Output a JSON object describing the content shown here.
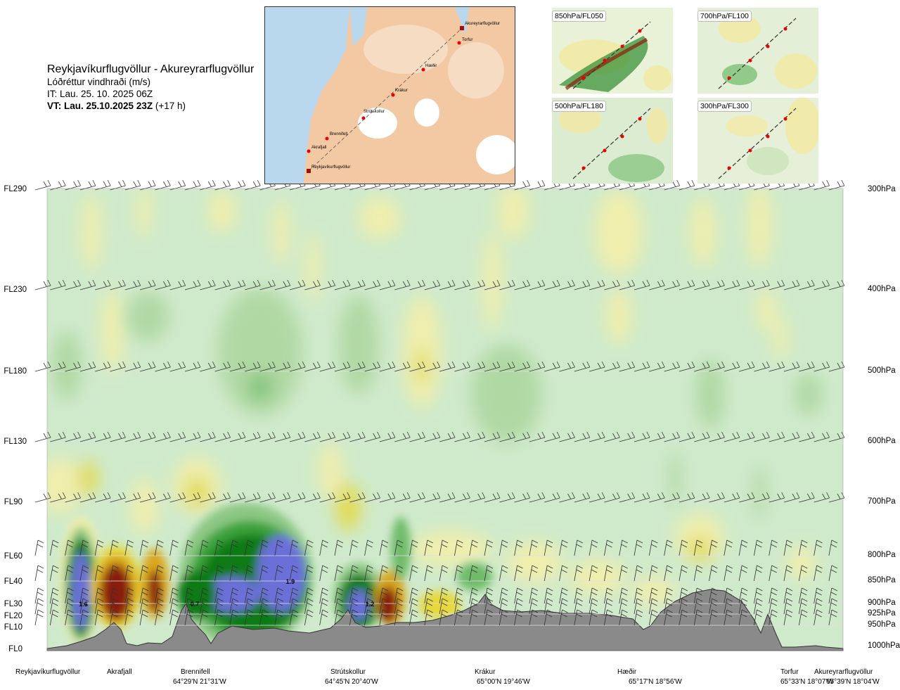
{
  "header": {
    "title": "Reykjavíkurflugvöllur - Akureyrarflugvöllur",
    "variable": "Lóðréttur vindhraði (m/s)",
    "issue_time": "IT: Lau. 25. 10. 2025 06Z",
    "valid_bold": "VT: Lau. 25.10.2025 23Z",
    "valid_lead": " (+17 h)"
  },
  "map": {
    "route_labels": [
      "Akureyrarflugvöllur",
      "Torfur",
      "Hæðir",
      "Krákur",
      "Strútskollur",
      "Brennifell",
      "Akrafjall",
      "Reykjavíkurflugvöllur"
    ]
  },
  "panels": [
    {
      "label": "850hPa/FL050"
    },
    {
      "label": "700hPa/FL100"
    },
    {
      "label": "500hPa/FL180"
    },
    {
      "label": "300hPa/FL300"
    }
  ],
  "levels_left": [
    "FL290",
    "FL230",
    "FL180",
    "FL130",
    "FL90",
    "FL60",
    "FL40",
    "FL30",
    "FL20",
    "FL10",
    "FL0"
  ],
  "levels_right": [
    "300hPa",
    "400hPa",
    "500hPa",
    "600hPa",
    "700hPa",
    "800hPa",
    "850hPa",
    "900hPa",
    "925hPa",
    "950hPa",
    "1000hPa"
  ],
  "stations": [
    {
      "name": "Reykjavíkurflugvöllur",
      "coord": ""
    },
    {
      "name": "Akrafjall",
      "coord": ""
    },
    {
      "name": "Brennifell",
      "coord": "64°29'N 21°31'W"
    },
    {
      "name": "Strútskollur",
      "coord": "64°45'N 20°40'W"
    },
    {
      "name": "Krákur",
      "coord": "65°00'N 19°46'W"
    },
    {
      "name": "Hæðir",
      "coord": "65°17'N 18°56'W"
    },
    {
      "name": "Torfur",
      "coord": "65°33'N 18°07'W"
    },
    {
      "name": "Akureyrarflugvöllur",
      "coord": "65°39'N 18°04'W"
    }
  ],
  "chart_data": {
    "type": "heatmap",
    "xlabel": "",
    "ylabel": "",
    "cell_labels": [
      {
        "value": "1.6",
        "station_frac": 0.04,
        "pressure_hPa": 900
      },
      {
        "value": "0.7",
        "station_frac": 0.18,
        "pressure_hPa": 900
      },
      {
        "value": "1.9",
        "station_frac": 0.3,
        "pressure_hPa": 850
      },
      {
        "value": "1.2",
        "station_frac": 0.4,
        "pressure_hPa": 900
      }
    ],
    "colors": {
      "strong_up_core": "#6a6fd8",
      "up_3": "#0d7a12",
      "up_2": "#3aa23a",
      "up_1": "#8cc884",
      "neutral": "#cfeacb",
      "down_1": "#f5efa8",
      "down_2": "#e6d83a",
      "down_3": "#d9a81c",
      "strong_down_core": "#8a1e0c",
      "terrain": "#8a8a8a"
    }
  }
}
